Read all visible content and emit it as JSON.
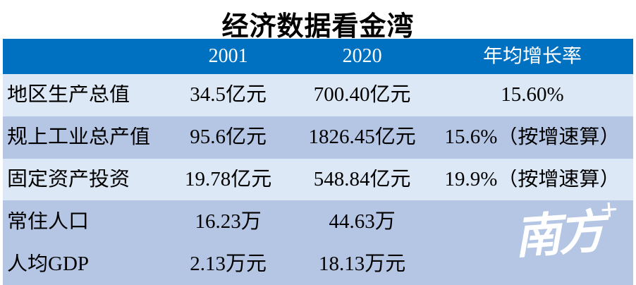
{
  "title": "经济数据看金湾",
  "colors": {
    "header_bg": "#0070C0",
    "row_light": "#DCE8F5",
    "row_medium": "#B4C6E4",
    "header_text": "#FFFFFF",
    "body_text": "#000000",
    "watermark_text": "#FFFFFF"
  },
  "watermark": {
    "text": "南方",
    "plus": "+"
  },
  "chart_data": {
    "type": "table",
    "title": "经济数据看金湾",
    "columns": [
      "",
      "2001",
      "2020",
      "年均增长率"
    ],
    "rows": [
      {
        "cells": [
          "地区生产总值",
          "34.5亿元",
          "700.40亿元",
          "15.60%"
        ]
      },
      {
        "cells": [
          "规上工业总产值",
          "95.6亿元",
          "1826.45亿元",
          "15.6%（按增速算）"
        ]
      },
      {
        "cells": [
          "固定资产投资",
          "19.78亿元",
          "548.84亿元",
          "19.9%（按增速算）"
        ]
      },
      {
        "cells": [
          "常住人口",
          "16.23万",
          "44.63万",
          ""
        ]
      },
      {
        "cells": [
          "人均GDP",
          "2.13万元",
          "18.13万元",
          ""
        ]
      }
    ],
    "layout": {
      "header_background": "#0070C0",
      "alternating_row_colors": [
        "#DCE8F5",
        "#B4C6E4",
        "#DCE8F5",
        "#B4C6E4",
        "#B4C6E4"
      ],
      "first_column_align": "left",
      "value_columns_align": "center"
    }
  }
}
